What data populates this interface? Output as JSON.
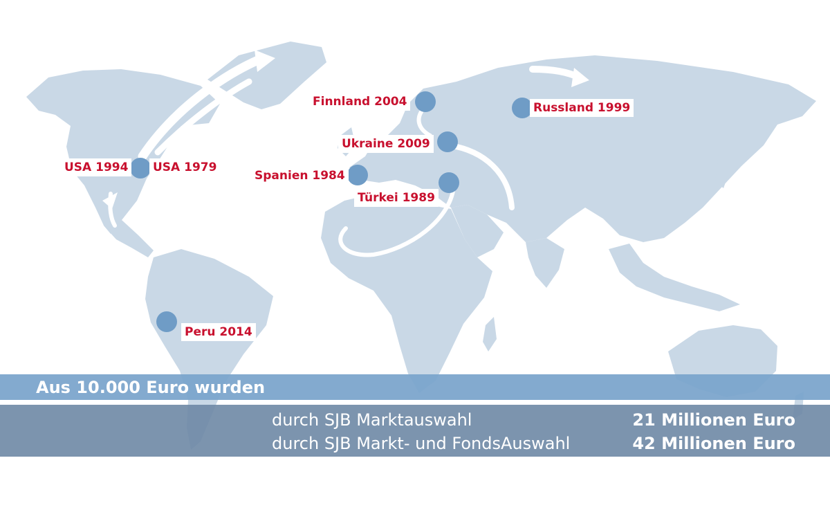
{
  "locations": [
    {
      "id": "usa-1994",
      "label": "USA 1994"
    },
    {
      "id": "usa-1979",
      "label": "USA 1979"
    },
    {
      "id": "finnland-2004",
      "label": "Finnland 2004"
    },
    {
      "id": "ukraine-2009",
      "label": "Ukraine 2009"
    },
    {
      "id": "spanien-1984",
      "label": "Spanien 1984"
    },
    {
      "id": "tuerkei-1989",
      "label": "Türkei 1989"
    },
    {
      "id": "russland-1999",
      "label": "Russland 1999"
    },
    {
      "id": "peru-2014",
      "label": "Peru 2014"
    }
  ],
  "summary": {
    "headline": "Aus 10.000 Euro wurden",
    "rows": [
      {
        "label": "durch SJB Marktauswahl",
        "value": "21 Millionen Euro"
      },
      {
        "label": "durch SJB Markt- und FondsAuswahl",
        "value": "42 Millionen Euro"
      }
    ]
  },
  "colors": {
    "land": "#c9d8e6",
    "marker": "#6f9cc6",
    "label_text": "#c8102e",
    "band_top": "#7aa4cb",
    "band_bottom": "#6e88a5"
  }
}
